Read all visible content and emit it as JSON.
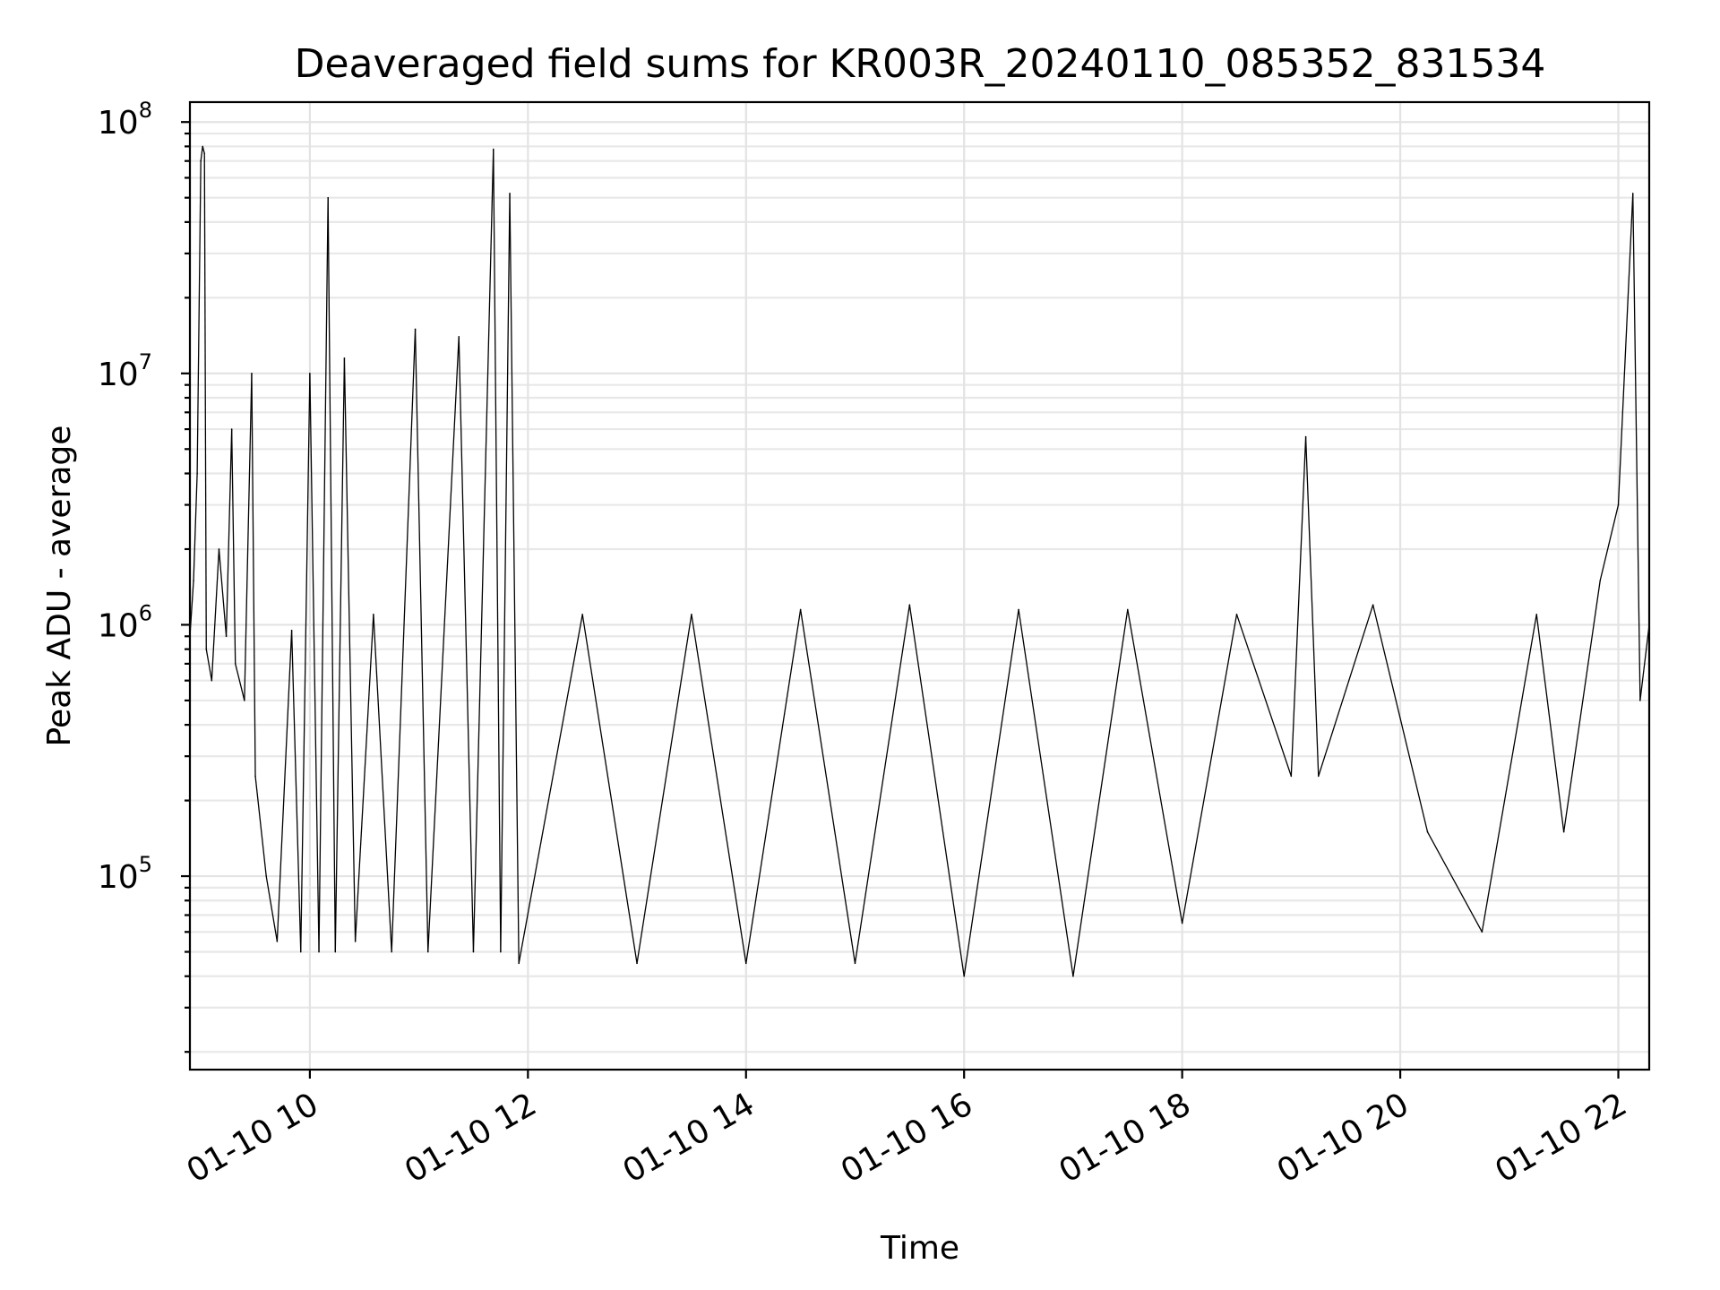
{
  "chart_data": {
    "type": "line",
    "title": "Deaveraged field sums for KR003R_20240110_085352_831534",
    "xlabel": "Time",
    "ylabel": "Peak ADU - average",
    "x_axis": {
      "kind": "datetime",
      "range": [
        "2024-01-10 08:54",
        "2024-01-10 22:17"
      ],
      "ticks": [
        {
          "value": "2024-01-10 10:00",
          "label": "01-10 10"
        },
        {
          "value": "2024-01-10 12:00",
          "label": "01-10 12"
        },
        {
          "value": "2024-01-10 14:00",
          "label": "01-10 14"
        },
        {
          "value": "2024-01-10 16:00",
          "label": "01-10 16"
        },
        {
          "value": "2024-01-10 18:00",
          "label": "01-10 18"
        },
        {
          "value": "2024-01-10 20:00",
          "label": "01-10 20"
        },
        {
          "value": "2024-01-10 22:00",
          "label": "01-10 22"
        }
      ]
    },
    "y_axis": {
      "scale": "log",
      "range": [
        17000,
        120000000
      ],
      "ticks": [
        {
          "value": 100000,
          "base": "10",
          "exp": "5"
        },
        {
          "value": 1000000,
          "base": "10",
          "exp": "6"
        },
        {
          "value": 10000000,
          "base": "10",
          "exp": "7"
        },
        {
          "value": 100000000,
          "base": "10",
          "exp": "8"
        }
      ]
    },
    "grid": true,
    "legend": "none",
    "series": [
      {
        "color": "#000000",
        "points": [
          [
            "2024-01-10 08:54",
            900000
          ],
          [
            "2024-01-10 08:56",
            1500000
          ],
          [
            "2024-01-10 08:58",
            4000000
          ],
          [
            "2024-01-10 09:00",
            70000000
          ],
          [
            "2024-01-10 09:01",
            80000000
          ],
          [
            "2024-01-10 09:02",
            75000000
          ],
          [
            "2024-01-10 09:03",
            800000
          ],
          [
            "2024-01-10 09:06",
            600000
          ],
          [
            "2024-01-10 09:10",
            2000000
          ],
          [
            "2024-01-10 09:14",
            900000
          ],
          [
            "2024-01-10 09:17",
            6000000
          ],
          [
            "2024-01-10 09:19",
            700000
          ],
          [
            "2024-01-10 09:24",
            500000
          ],
          [
            "2024-01-10 09:28",
            10000000
          ],
          [
            "2024-01-10 09:30",
            250000
          ],
          [
            "2024-01-10 09:36",
            100000
          ],
          [
            "2024-01-10 09:42",
            55000
          ],
          [
            "2024-01-10 09:50",
            950000
          ],
          [
            "2024-01-10 09:55",
            50000
          ],
          [
            "2024-01-10 10:00",
            10000000
          ],
          [
            "2024-01-10 10:05",
            50000
          ],
          [
            "2024-01-10 10:10",
            50000000
          ],
          [
            "2024-01-10 10:14",
            50000
          ],
          [
            "2024-01-10 10:19",
            11500000
          ],
          [
            "2024-01-10 10:25",
            55000
          ],
          [
            "2024-01-10 10:35",
            1100000
          ],
          [
            "2024-01-10 10:45",
            50000
          ],
          [
            "2024-01-10 10:58",
            15000000
          ],
          [
            "2024-01-10 11:05",
            50000
          ],
          [
            "2024-01-10 11:22",
            14000000
          ],
          [
            "2024-01-10 11:30",
            50000
          ],
          [
            "2024-01-10 11:41",
            78000000
          ],
          [
            "2024-01-10 11:45",
            50000
          ],
          [
            "2024-01-10 11:50",
            52000000
          ],
          [
            "2024-01-10 11:55",
            45000
          ],
          [
            "2024-01-10 12:30",
            1100000
          ],
          [
            "2024-01-10 13:00",
            45000
          ],
          [
            "2024-01-10 13:30",
            1100000
          ],
          [
            "2024-01-10 14:00",
            45000
          ],
          [
            "2024-01-10 14:30",
            1150000
          ],
          [
            "2024-01-10 15:00",
            45000
          ],
          [
            "2024-01-10 15:30",
            1200000
          ],
          [
            "2024-01-10 16:00",
            40000
          ],
          [
            "2024-01-10 16:30",
            1150000
          ],
          [
            "2024-01-10 17:00",
            40000
          ],
          [
            "2024-01-10 17:30",
            1150000
          ],
          [
            "2024-01-10 18:00",
            65000
          ],
          [
            "2024-01-10 18:30",
            1100000
          ],
          [
            "2024-01-10 19:00",
            250000
          ],
          [
            "2024-01-10 19:08",
            5600000
          ],
          [
            "2024-01-10 19:15",
            250000
          ],
          [
            "2024-01-10 19:45",
            1200000
          ],
          [
            "2024-01-10 20:15",
            150000
          ],
          [
            "2024-01-10 20:45",
            60000
          ],
          [
            "2024-01-10 21:15",
            1100000
          ],
          [
            "2024-01-10 21:30",
            150000
          ],
          [
            "2024-01-10 21:50",
            1500000
          ],
          [
            "2024-01-10 22:00",
            3000000
          ],
          [
            "2024-01-10 22:08",
            52000000
          ],
          [
            "2024-01-10 22:12",
            500000
          ],
          [
            "2024-01-10 22:17",
            1000000
          ]
        ]
      }
    ]
  }
}
